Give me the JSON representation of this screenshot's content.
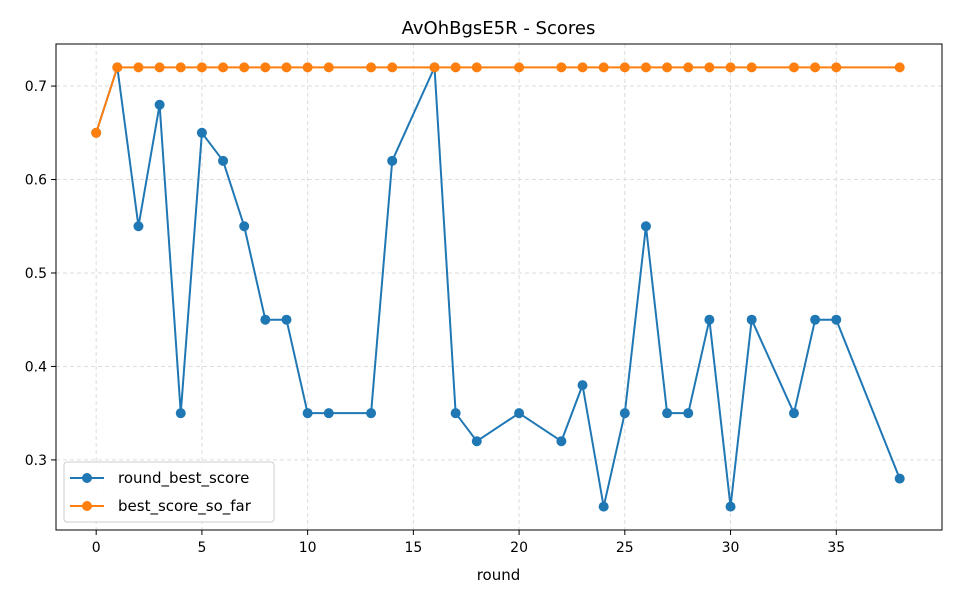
{
  "chart_data": {
    "type": "line",
    "title": "AvOhBgsE5R - Scores",
    "xlabel": "round",
    "ylabel": "",
    "xlim": [
      -1.9,
      40.0
    ],
    "ylim": [
      0.225,
      0.745
    ],
    "xticks": [
      0,
      5,
      10,
      15,
      20,
      25,
      30,
      35
    ],
    "yticks": [
      0.3,
      0.4,
      0.5,
      0.6,
      0.7
    ],
    "grid": true,
    "legend_position": "lower-left",
    "series": [
      {
        "name": "round_best_score",
        "color": "#1f77b4",
        "x": [
          0,
          1,
          2,
          3,
          4,
          5,
          6,
          7,
          8,
          9,
          10,
          11,
          13,
          14,
          16,
          17,
          18,
          20,
          22,
          23,
          24,
          25,
          26,
          27,
          28,
          29,
          30,
          31,
          33,
          34,
          35,
          38
        ],
        "y": [
          0.65,
          0.72,
          0.55,
          0.68,
          0.35,
          0.65,
          0.62,
          0.55,
          0.45,
          0.45,
          0.35,
          0.35,
          0.35,
          0.62,
          0.72,
          0.35,
          0.32,
          0.35,
          0.32,
          0.38,
          0.25,
          0.35,
          0.55,
          0.35,
          0.35,
          0.45,
          0.25,
          0.45,
          0.35,
          0.45,
          0.45,
          0.28
        ]
      },
      {
        "name": "best_score_so_far",
        "color": "#ff7f0e",
        "x": [
          0,
          1,
          2,
          3,
          4,
          5,
          6,
          7,
          8,
          9,
          10,
          11,
          13,
          14,
          16,
          17,
          18,
          20,
          22,
          23,
          24,
          25,
          26,
          27,
          28,
          29,
          30,
          31,
          33,
          34,
          35,
          38
        ],
        "y": [
          0.65,
          0.72,
          0.72,
          0.72,
          0.72,
          0.72,
          0.72,
          0.72,
          0.72,
          0.72,
          0.72,
          0.72,
          0.72,
          0.72,
          0.72,
          0.72,
          0.72,
          0.72,
          0.72,
          0.72,
          0.72,
          0.72,
          0.72,
          0.72,
          0.72,
          0.72,
          0.72,
          0.72,
          0.72,
          0.72,
          0.72,
          0.72
        ]
      }
    ]
  }
}
